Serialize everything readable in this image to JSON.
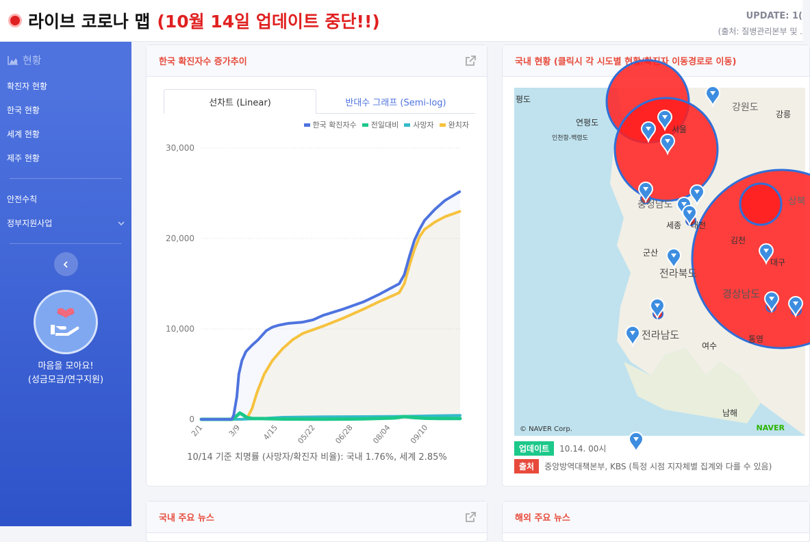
{
  "header": {
    "title": "라이브 코로나 맵",
    "notice": "(10월 14일 업데이트 중단!!)",
    "update": "UPDATE: 1(",
    "source": "(출처: 질병관리본부 및 ."
  },
  "sidebar": {
    "section": "현황",
    "items": [
      "확진자 현황",
      "한국 현황",
      "세계 현황",
      "제주 현황"
    ],
    "items2": [
      "안전수칙",
      "정부지원사업"
    ],
    "donate_line1": "마음을 모아요!",
    "donate_line2": "(성금모금/연구지원)"
  },
  "chart_card": {
    "title": "한국 확진자수 증가추이",
    "tab_linear": "선차트 (Linear)",
    "tab_semilog": "반대수 그래프 (Semi-log)",
    "fatality": "10/14 기준 치명률 (사망자/확진자 비율): 국내 1.76%, 세계 2.85%"
  },
  "chart_data": {
    "type": "line",
    "title": "",
    "xlabel": "",
    "ylabel": "",
    "ylim": [
      0,
      30000
    ],
    "y_ticks": [
      "0",
      "10,000",
      "20,000",
      "30,000"
    ],
    "x_ticks": [
      "2/1",
      "3/9",
      "4/15",
      "05/22",
      "06/28",
      "08/04",
      "09/10"
    ],
    "legend_position": "top-right",
    "grid": true,
    "series": [
      {
        "name": "한국 확진자수",
        "color": "#4e73df",
        "points": [
          [
            0,
            0
          ],
          [
            30,
            0
          ],
          [
            32,
            500
          ],
          [
            35,
            2500
          ],
          [
            37,
            5000
          ],
          [
            40,
            6500
          ],
          [
            44,
            7500
          ],
          [
            50,
            8200
          ],
          [
            56,
            8800
          ],
          [
            60,
            9300
          ],
          [
            64,
            9800
          ],
          [
            70,
            10200
          ],
          [
            76,
            10400
          ],
          [
            85,
            10600
          ],
          [
            100,
            10750
          ],
          [
            110,
            11000
          ],
          [
            120,
            11500
          ],
          [
            140,
            12200
          ],
          [
            160,
            13000
          ],
          [
            175,
            13800
          ],
          [
            185,
            14400
          ],
          [
            195,
            15000
          ],
          [
            200,
            16000
          ],
          [
            205,
            18000
          ],
          [
            210,
            19800
          ],
          [
            215,
            21000
          ],
          [
            220,
            22000
          ],
          [
            230,
            23200
          ],
          [
            240,
            24200
          ],
          [
            255,
            25200
          ]
        ]
      },
      {
        "name": "전일대비",
        "color": "#1cc88a",
        "points": [
          [
            0,
            0
          ],
          [
            30,
            0
          ],
          [
            34,
            300
          ],
          [
            38,
            700
          ],
          [
            41,
            500
          ],
          [
            45,
            200
          ],
          [
            50,
            100
          ],
          [
            60,
            80
          ],
          [
            80,
            40
          ],
          [
            120,
            20
          ],
          [
            160,
            50
          ],
          [
            190,
            150
          ],
          [
            200,
            300
          ],
          [
            210,
            200
          ],
          [
            220,
            120
          ],
          [
            235,
            100
          ],
          [
            255,
            90
          ]
        ]
      },
      {
        "name": "사망자",
        "color": "#36b9cc",
        "points": [
          [
            0,
            0
          ],
          [
            40,
            10
          ],
          [
            60,
            100
          ],
          [
            80,
            230
          ],
          [
            120,
            280
          ],
          [
            160,
            300
          ],
          [
            200,
            330
          ],
          [
            230,
            400
          ],
          [
            255,
            440
          ]
        ]
      },
      {
        "name": "완치자",
        "color": "#f6c23e",
        "points": [
          [
            0,
            0
          ],
          [
            40,
            0
          ],
          [
            45,
            100
          ],
          [
            50,
            1200
          ],
          [
            55,
            3000
          ],
          [
            62,
            5000
          ],
          [
            70,
            6500
          ],
          [
            80,
            7800
          ],
          [
            90,
            8800
          ],
          [
            100,
            9500
          ],
          [
            120,
            10300
          ],
          [
            140,
            11200
          ],
          [
            160,
            12200
          ],
          [
            175,
            13000
          ],
          [
            185,
            13500
          ],
          [
            195,
            14000
          ],
          [
            200,
            15000
          ],
          [
            205,
            17000
          ],
          [
            210,
            18800
          ],
          [
            215,
            20200
          ],
          [
            220,
            21000
          ],
          [
            230,
            21800
          ],
          [
            240,
            22400
          ],
          [
            255,
            23000
          ]
        ]
      }
    ]
  },
  "map_card": {
    "title": "국내 현황 (클릭시 각 시도별 현황/확진자 이동경로로 이동)",
    "labels_small": [
      "평도",
      "연평도",
      "인천항-백령도",
      "서울",
      "강원도",
      "강릉",
      "세종",
      "대전",
      "군산",
      "김천",
      "대구",
      "통영",
      "여수",
      "남해",
      "상북",
      "충청남도"
    ],
    "labels_big": [
      "전라북도",
      "전라남도",
      "경상남도"
    ],
    "credit": "© NAVER Corp.",
    "naver": "NAVER",
    "update_badge": "업데이트",
    "update_value": "10.14. 00시",
    "source_badge": "출처",
    "source_value": "중앙방역대책본부, KBS (특정 시점 지자체별 집계와 다를 수 있음)"
  },
  "bottom_cards": {
    "news_korea": "국내 주요 뉴스",
    "news_world": "해외 주요 뉴스"
  },
  "colors": {
    "accent": "#4e73df",
    "title_red": "#e74a3b",
    "notice_red": "#e02020",
    "badge_green": "#1cc88a"
  }
}
